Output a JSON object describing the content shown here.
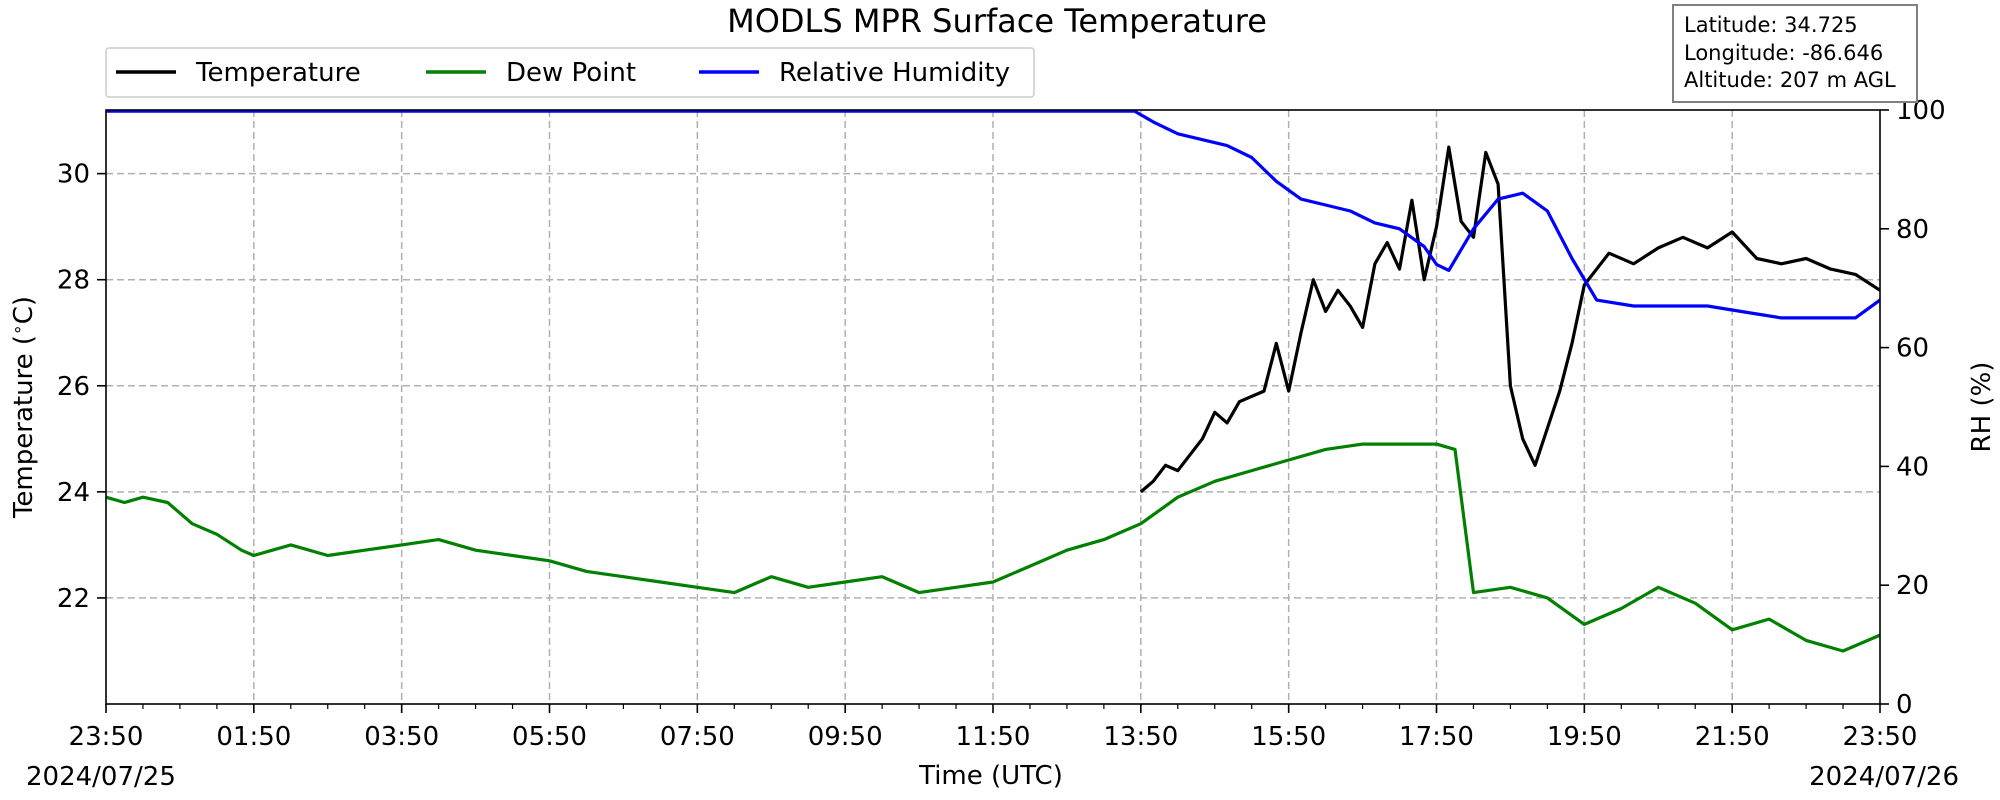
{
  "chart_data": {
    "type": "line",
    "title": "MODLS MPR Surface Temperature",
    "xlabel": "Time (UTC)",
    "ylabel_left": "Temperature ($^\\circ$C)",
    "ylabel_right": "RH (%)",
    "date_start": "2024/07/25",
    "date_end": "2024/07/26",
    "x_tick_labels": [
      "23:50",
      "01:50",
      "03:50",
      "05:50",
      "07:50",
      "09:50",
      "11:50",
      "13:50",
      "15:50",
      "17:50",
      "19:50",
      "21:50",
      "23:50"
    ],
    "x_range": [
      "2024-07-25 23:50",
      "2024-07-26 23:50"
    ],
    "y_left_ticks": [
      22,
      24,
      26,
      28,
      30
    ],
    "y_left_range": [
      20.0,
      31.2
    ],
    "y_right_ticks": [
      0,
      20,
      40,
      60,
      80,
      100
    ],
    "y_right_range": [
      0,
      100
    ],
    "grid": true,
    "legend_position": "top-left",
    "info_box": {
      "latitude": "Latitude: 34.725",
      "longitude": "Longitude: -86.646",
      "altitude": "Altitude: 207 m AGL"
    },
    "series": [
      {
        "name": "Temperature",
        "color": "#000000",
        "axis": "left",
        "x": [
          "2024-07-26 13:50",
          "2024-07-26 14:00",
          "2024-07-26 14:10",
          "2024-07-26 14:20",
          "2024-07-26 14:30",
          "2024-07-26 14:40",
          "2024-07-26 14:50",
          "2024-07-26 15:00",
          "2024-07-26 15:10",
          "2024-07-26 15:20",
          "2024-07-26 15:30",
          "2024-07-26 15:40",
          "2024-07-26 15:50",
          "2024-07-26 16:00",
          "2024-07-26 16:10",
          "2024-07-26 16:20",
          "2024-07-26 16:30",
          "2024-07-26 16:40",
          "2024-07-26 16:50",
          "2024-07-26 17:00",
          "2024-07-26 17:10",
          "2024-07-26 17:20",
          "2024-07-26 17:30",
          "2024-07-26 17:40",
          "2024-07-26 17:50",
          "2024-07-26 18:00",
          "2024-07-26 18:10",
          "2024-07-26 18:20",
          "2024-07-26 18:30",
          "2024-07-26 18:40",
          "2024-07-26 18:50",
          "2024-07-26 19:00",
          "2024-07-26 19:10",
          "2024-07-26 19:20",
          "2024-07-26 19:30",
          "2024-07-26 19:40",
          "2024-07-26 19:50",
          "2024-07-26 20:10",
          "2024-07-26 20:30",
          "2024-07-26 20:50",
          "2024-07-26 21:10",
          "2024-07-26 21:30",
          "2024-07-26 21:50",
          "2024-07-26 22:10",
          "2024-07-26 22:30",
          "2024-07-26 22:50",
          "2024-07-26 23:10",
          "2024-07-26 23:30",
          "2024-07-26 23:50"
        ],
        "values": [
          24.0,
          24.2,
          24.5,
          24.4,
          24.7,
          25.0,
          25.5,
          25.3,
          25.7,
          25.8,
          25.9,
          26.8,
          25.9,
          27.0,
          28.0,
          27.4,
          27.8,
          27.5,
          27.1,
          28.3,
          28.7,
          28.2,
          29.5,
          28.0,
          29.0,
          30.5,
          29.1,
          28.8,
          30.4,
          29.8,
          26.0,
          25.0,
          24.5,
          25.2,
          25.9,
          26.8,
          27.9,
          28.5,
          28.3,
          28.6,
          28.8,
          28.6,
          28.9,
          28.4,
          28.3,
          28.4,
          28.2,
          28.1,
          27.8
        ]
      },
      {
        "name": "Dew Point",
        "color": "#008000",
        "axis": "left",
        "x": [
          "2024-07-25 23:50",
          "2024-07-26 00:05",
          "2024-07-26 00:20",
          "2024-07-26 00:40",
          "2024-07-26 01:00",
          "2024-07-26 01:20",
          "2024-07-26 01:40",
          "2024-07-26 01:50",
          "2024-07-26 02:20",
          "2024-07-26 02:50",
          "2024-07-26 03:20",
          "2024-07-26 03:50",
          "2024-07-26 04:20",
          "2024-07-26 04:50",
          "2024-07-26 05:20",
          "2024-07-26 05:50",
          "2024-07-26 06:20",
          "2024-07-26 06:50",
          "2024-07-26 07:20",
          "2024-07-26 07:50",
          "2024-07-26 08:20",
          "2024-07-26 08:50",
          "2024-07-26 09:20",
          "2024-07-26 09:50",
          "2024-07-26 10:20",
          "2024-07-26 10:50",
          "2024-07-26 11:20",
          "2024-07-26 11:50",
          "2024-07-26 12:20",
          "2024-07-26 12:50",
          "2024-07-26 13:20",
          "2024-07-26 13:50",
          "2024-07-26 14:20",
          "2024-07-26 14:50",
          "2024-07-26 15:20",
          "2024-07-26 15:50",
          "2024-07-26 16:20",
          "2024-07-26 16:50",
          "2024-07-26 17:20",
          "2024-07-26 17:50",
          "2024-07-26 18:05",
          "2024-07-26 18:20",
          "2024-07-26 18:50",
          "2024-07-26 19:20",
          "2024-07-26 19:50",
          "2024-07-26 20:20",
          "2024-07-26 20:50",
          "2024-07-26 21:20",
          "2024-07-26 21:50",
          "2024-07-26 22:20",
          "2024-07-26 22:50",
          "2024-07-26 23:20",
          "2024-07-26 23:50"
        ],
        "values": [
          23.9,
          23.8,
          23.9,
          23.8,
          23.4,
          23.2,
          22.9,
          22.8,
          23.0,
          22.8,
          22.9,
          23.0,
          23.1,
          22.9,
          22.8,
          22.7,
          22.5,
          22.4,
          22.3,
          22.2,
          22.1,
          22.4,
          22.2,
          22.3,
          22.4,
          22.1,
          22.2,
          22.3,
          22.6,
          22.9,
          23.1,
          23.4,
          23.9,
          24.2,
          24.4,
          24.6,
          24.8,
          24.9,
          24.9,
          24.9,
          24.8,
          22.1,
          22.2,
          22.0,
          21.5,
          21.8,
          22.2,
          21.9,
          21.4,
          21.6,
          21.2,
          21.0,
          21.3
        ]
      },
      {
        "name": "Relative Humidity",
        "color": "#0000ff",
        "axis": "right",
        "x": [
          "2024-07-25 23:50",
          "2024-07-26 02:00",
          "2024-07-26 06:00",
          "2024-07-26 10:00",
          "2024-07-26 13:45",
          "2024-07-26 14:00",
          "2024-07-26 14:20",
          "2024-07-26 14:40",
          "2024-07-26 15:00",
          "2024-07-26 15:20",
          "2024-07-26 15:40",
          "2024-07-26 16:00",
          "2024-07-26 16:20",
          "2024-07-26 16:40",
          "2024-07-26 17:00",
          "2024-07-26 17:20",
          "2024-07-26 17:40",
          "2024-07-26 17:50",
          "2024-07-26 18:00",
          "2024-07-26 18:20",
          "2024-07-26 18:40",
          "2024-07-26 19:00",
          "2024-07-26 19:20",
          "2024-07-26 19:40",
          "2024-07-26 20:00",
          "2024-07-26 20:30",
          "2024-07-26 21:00",
          "2024-07-26 21:30",
          "2024-07-26 22:00",
          "2024-07-26 22:30",
          "2024-07-26 23:00",
          "2024-07-26 23:30",
          "2024-07-26 23:50"
        ],
        "values": [
          99.8,
          99.8,
          99.8,
          99.8,
          99.8,
          98.0,
          96.0,
          95.0,
          94.0,
          92.0,
          88.0,
          85.0,
          84.0,
          83.0,
          81.0,
          80.0,
          77.0,
          74.0,
          73.0,
          80.0,
          85.0,
          86.0,
          83.0,
          75.0,
          68.0,
          67.0,
          67.0,
          67.0,
          66.0,
          65.0,
          65.0,
          65.0,
          68.0
        ]
      }
    ]
  }
}
